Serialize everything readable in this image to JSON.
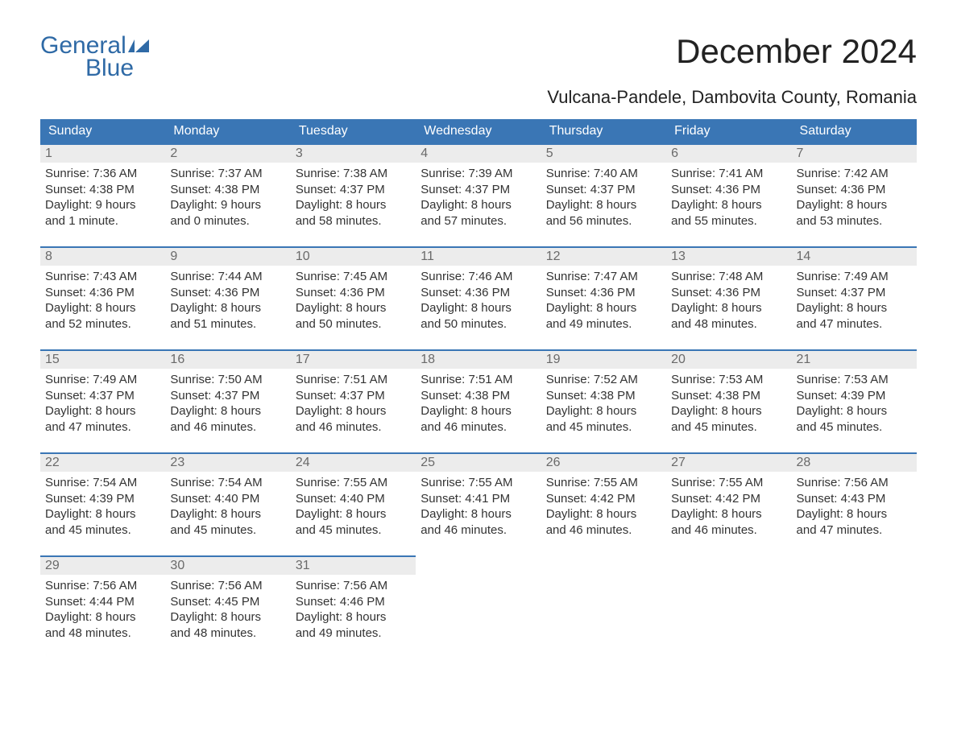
{
  "brand": {
    "word1": "General",
    "word2": "Blue",
    "text_color": "#2f6aa6",
    "mark_color": "#2f6aa6"
  },
  "title": "December 2024",
  "subtitle": "Vulcana-Pandele, Dambovita County, Romania",
  "colors": {
    "header_bg": "#3a76b5",
    "header_text": "#ffffff",
    "day_bar_bg": "#ececec",
    "day_bar_border": "#3a76b5",
    "body_text": "#333333",
    "day_num_text": "#6a6a6a",
    "page_bg": "#ffffff"
  },
  "weekdays": [
    "Sunday",
    "Monday",
    "Tuesday",
    "Wednesday",
    "Thursday",
    "Friday",
    "Saturday"
  ],
  "days": [
    {
      "n": "1",
      "sunrise": "Sunrise: 7:36 AM",
      "sunset": "Sunset: 4:38 PM",
      "dl1": "Daylight: 9 hours",
      "dl2": "and 1 minute."
    },
    {
      "n": "2",
      "sunrise": "Sunrise: 7:37 AM",
      "sunset": "Sunset: 4:38 PM",
      "dl1": "Daylight: 9 hours",
      "dl2": "and 0 minutes."
    },
    {
      "n": "3",
      "sunrise": "Sunrise: 7:38 AM",
      "sunset": "Sunset: 4:37 PM",
      "dl1": "Daylight: 8 hours",
      "dl2": "and 58 minutes."
    },
    {
      "n": "4",
      "sunrise": "Sunrise: 7:39 AM",
      "sunset": "Sunset: 4:37 PM",
      "dl1": "Daylight: 8 hours",
      "dl2": "and 57 minutes."
    },
    {
      "n": "5",
      "sunrise": "Sunrise: 7:40 AM",
      "sunset": "Sunset: 4:37 PM",
      "dl1": "Daylight: 8 hours",
      "dl2": "and 56 minutes."
    },
    {
      "n": "6",
      "sunrise": "Sunrise: 7:41 AM",
      "sunset": "Sunset: 4:36 PM",
      "dl1": "Daylight: 8 hours",
      "dl2": "and 55 minutes."
    },
    {
      "n": "7",
      "sunrise": "Sunrise: 7:42 AM",
      "sunset": "Sunset: 4:36 PM",
      "dl1": "Daylight: 8 hours",
      "dl2": "and 53 minutes."
    },
    {
      "n": "8",
      "sunrise": "Sunrise: 7:43 AM",
      "sunset": "Sunset: 4:36 PM",
      "dl1": "Daylight: 8 hours",
      "dl2": "and 52 minutes."
    },
    {
      "n": "9",
      "sunrise": "Sunrise: 7:44 AM",
      "sunset": "Sunset: 4:36 PM",
      "dl1": "Daylight: 8 hours",
      "dl2": "and 51 minutes."
    },
    {
      "n": "10",
      "sunrise": "Sunrise: 7:45 AM",
      "sunset": "Sunset: 4:36 PM",
      "dl1": "Daylight: 8 hours",
      "dl2": "and 50 minutes."
    },
    {
      "n": "11",
      "sunrise": "Sunrise: 7:46 AM",
      "sunset": "Sunset: 4:36 PM",
      "dl1": "Daylight: 8 hours",
      "dl2": "and 50 minutes."
    },
    {
      "n": "12",
      "sunrise": "Sunrise: 7:47 AM",
      "sunset": "Sunset: 4:36 PM",
      "dl1": "Daylight: 8 hours",
      "dl2": "and 49 minutes."
    },
    {
      "n": "13",
      "sunrise": "Sunrise: 7:48 AM",
      "sunset": "Sunset: 4:36 PM",
      "dl1": "Daylight: 8 hours",
      "dl2": "and 48 minutes."
    },
    {
      "n": "14",
      "sunrise": "Sunrise: 7:49 AM",
      "sunset": "Sunset: 4:37 PM",
      "dl1": "Daylight: 8 hours",
      "dl2": "and 47 minutes."
    },
    {
      "n": "15",
      "sunrise": "Sunrise: 7:49 AM",
      "sunset": "Sunset: 4:37 PM",
      "dl1": "Daylight: 8 hours",
      "dl2": "and 47 minutes."
    },
    {
      "n": "16",
      "sunrise": "Sunrise: 7:50 AM",
      "sunset": "Sunset: 4:37 PM",
      "dl1": "Daylight: 8 hours",
      "dl2": "and 46 minutes."
    },
    {
      "n": "17",
      "sunrise": "Sunrise: 7:51 AM",
      "sunset": "Sunset: 4:37 PM",
      "dl1": "Daylight: 8 hours",
      "dl2": "and 46 minutes."
    },
    {
      "n": "18",
      "sunrise": "Sunrise: 7:51 AM",
      "sunset": "Sunset: 4:38 PM",
      "dl1": "Daylight: 8 hours",
      "dl2": "and 46 minutes."
    },
    {
      "n": "19",
      "sunrise": "Sunrise: 7:52 AM",
      "sunset": "Sunset: 4:38 PM",
      "dl1": "Daylight: 8 hours",
      "dl2": "and 45 minutes."
    },
    {
      "n": "20",
      "sunrise": "Sunrise: 7:53 AM",
      "sunset": "Sunset: 4:38 PM",
      "dl1": "Daylight: 8 hours",
      "dl2": "and 45 minutes."
    },
    {
      "n": "21",
      "sunrise": "Sunrise: 7:53 AM",
      "sunset": "Sunset: 4:39 PM",
      "dl1": "Daylight: 8 hours",
      "dl2": "and 45 minutes."
    },
    {
      "n": "22",
      "sunrise": "Sunrise: 7:54 AM",
      "sunset": "Sunset: 4:39 PM",
      "dl1": "Daylight: 8 hours",
      "dl2": "and 45 minutes."
    },
    {
      "n": "23",
      "sunrise": "Sunrise: 7:54 AM",
      "sunset": "Sunset: 4:40 PM",
      "dl1": "Daylight: 8 hours",
      "dl2": "and 45 minutes."
    },
    {
      "n": "24",
      "sunrise": "Sunrise: 7:55 AM",
      "sunset": "Sunset: 4:40 PM",
      "dl1": "Daylight: 8 hours",
      "dl2": "and 45 minutes."
    },
    {
      "n": "25",
      "sunrise": "Sunrise: 7:55 AM",
      "sunset": "Sunset: 4:41 PM",
      "dl1": "Daylight: 8 hours",
      "dl2": "and 46 minutes."
    },
    {
      "n": "26",
      "sunrise": "Sunrise: 7:55 AM",
      "sunset": "Sunset: 4:42 PM",
      "dl1": "Daylight: 8 hours",
      "dl2": "and 46 minutes."
    },
    {
      "n": "27",
      "sunrise": "Sunrise: 7:55 AM",
      "sunset": "Sunset: 4:42 PM",
      "dl1": "Daylight: 8 hours",
      "dl2": "and 46 minutes."
    },
    {
      "n": "28",
      "sunrise": "Sunrise: 7:56 AM",
      "sunset": "Sunset: 4:43 PM",
      "dl1": "Daylight: 8 hours",
      "dl2": "and 47 minutes."
    },
    {
      "n": "29",
      "sunrise": "Sunrise: 7:56 AM",
      "sunset": "Sunset: 4:44 PM",
      "dl1": "Daylight: 8 hours",
      "dl2": "and 48 minutes."
    },
    {
      "n": "30",
      "sunrise": "Sunrise: 7:56 AM",
      "sunset": "Sunset: 4:45 PM",
      "dl1": "Daylight: 8 hours",
      "dl2": "and 48 minutes."
    },
    {
      "n": "31",
      "sunrise": "Sunrise: 7:56 AM",
      "sunset": "Sunset: 4:46 PM",
      "dl1": "Daylight: 8 hours",
      "dl2": "and 49 minutes."
    }
  ],
  "layout": {
    "first_day_column": 0,
    "total_days": 31,
    "columns": 7
  }
}
